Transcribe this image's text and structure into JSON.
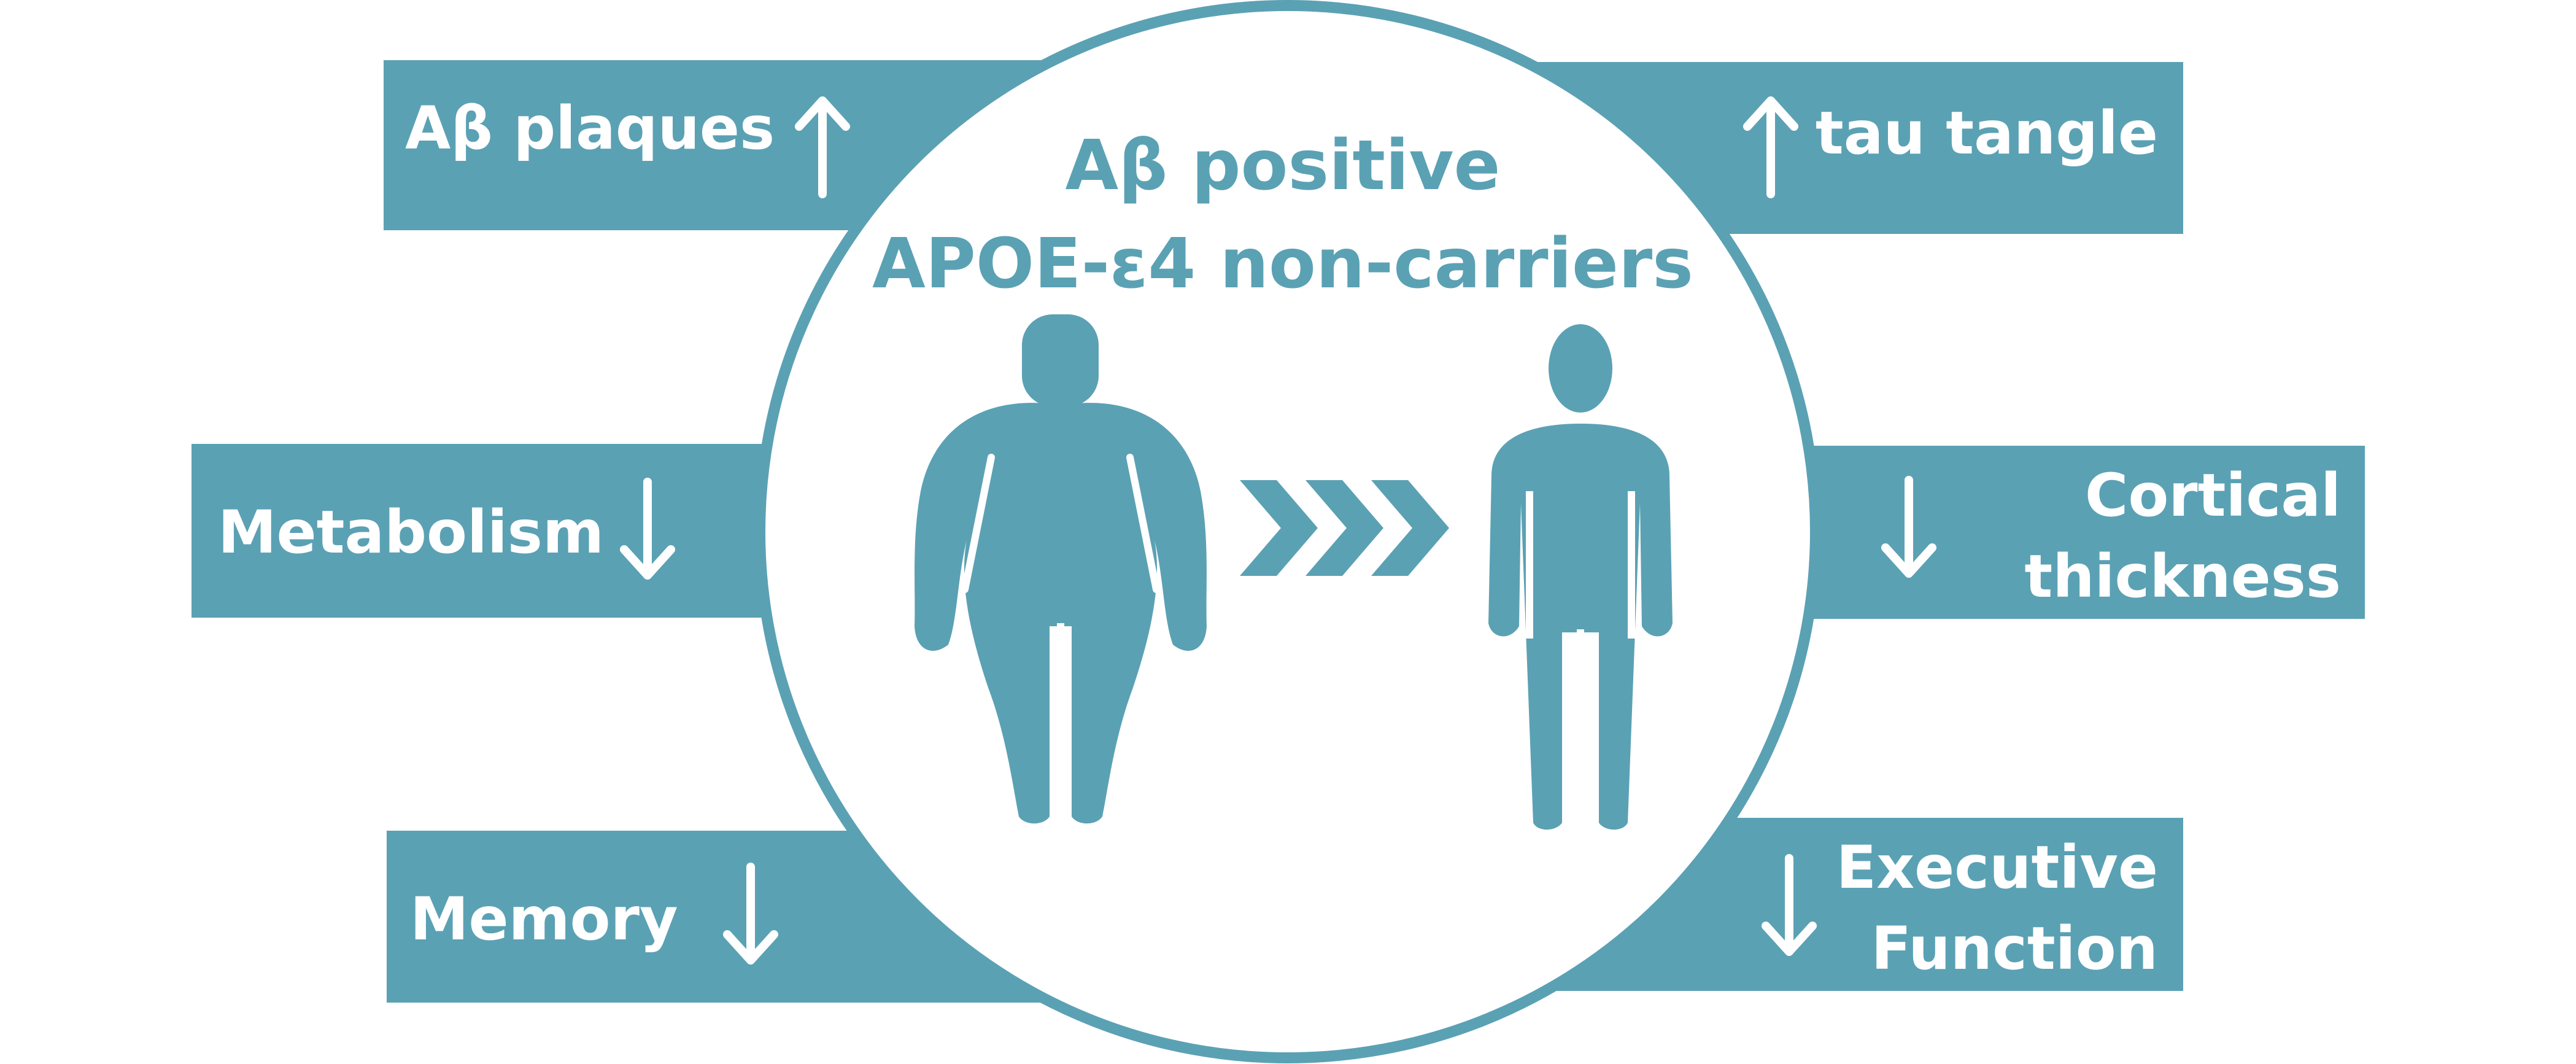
{
  "colors": {
    "primary": "#5ba1b4",
    "background": "#ffffff",
    "text_on_box": "#ffffff"
  },
  "center": {
    "title_line1": "Aβ positive",
    "title_line2": "APOE-ε4 non-carriers",
    "icons": [
      "obese-person-icon",
      "triple-chevron-right-icon",
      "lean-person-icon"
    ]
  },
  "boxes": {
    "ab_plaques": {
      "label": "Aβ plaques",
      "direction": "up"
    },
    "metabolism": {
      "label": "Metabolism",
      "direction": "down"
    },
    "memory": {
      "label": "Memory",
      "direction": "down"
    },
    "tau_tangle": {
      "label": "tau tangle",
      "direction": "up"
    },
    "cortical_thickness": {
      "line1": "Cortical",
      "line2": "thickness",
      "direction": "down"
    },
    "executive_function": {
      "line1": "Executive",
      "line2": "Function",
      "direction": "down"
    }
  }
}
